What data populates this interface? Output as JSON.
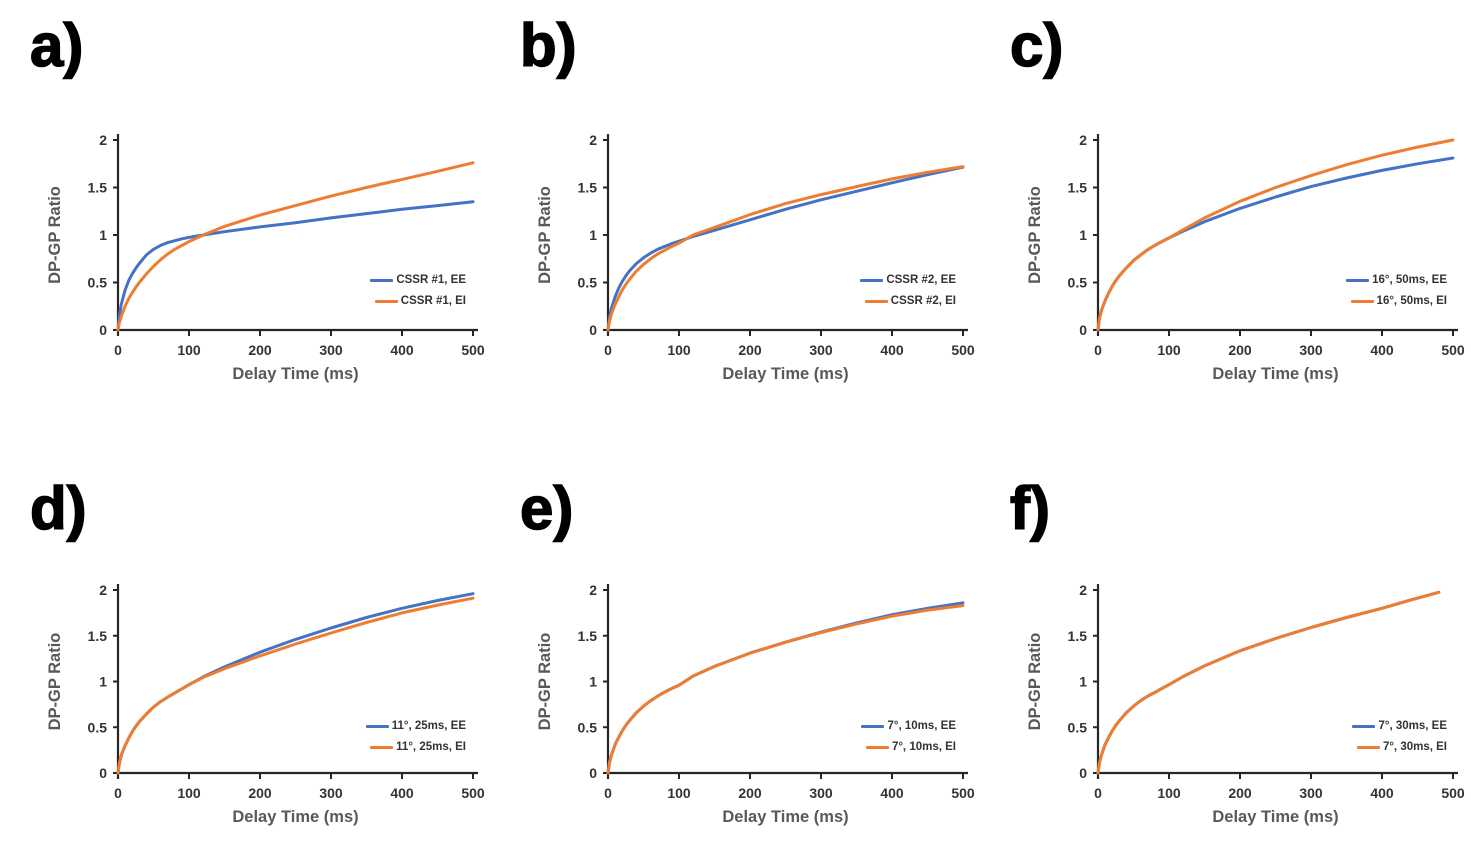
{
  "figure": {
    "background": "#ffffff",
    "x_axis_title": "Delay Time (ms)",
    "y_axis_title": "DP-GP Ratio",
    "x_ticks": [
      0,
      100,
      200,
      300,
      400,
      500
    ],
    "y_ticks": [
      0,
      0.5,
      1,
      1.5,
      2
    ],
    "x_range": [
      0,
      500
    ],
    "y_range": [
      0,
      2
    ],
    "colors": {
      "ee_line": "#4472C4",
      "ei_line": "#ED7D31",
      "axis": "#262626",
      "tick_label": "#333333",
      "axis_title": "#595959",
      "panel_letter": "#000000"
    }
  },
  "chart_data": [
    {
      "panel": "a)",
      "type": "line",
      "xlabel": "Delay Time (ms)",
      "ylabel": "DP-GP Ratio",
      "xlim": [
        0,
        500
      ],
      "ylim": [
        0,
        2
      ],
      "legend_position": "lower right",
      "grid": false,
      "series": [
        {
          "name": "CSSR #1, EE",
          "color": "#4472C4",
          "x": [
            0,
            2,
            5,
            10,
            15,
            20,
            25,
            30,
            40,
            50,
            60,
            70,
            80,
            90,
            100,
            120,
            150,
            200,
            250,
            300,
            350,
            400,
            450,
            500
          ],
          "y": [
            0,
            0.16,
            0.28,
            0.42,
            0.52,
            0.59,
            0.65,
            0.7,
            0.79,
            0.85,
            0.89,
            0.92,
            0.94,
            0.96,
            0.975,
            1.0,
            1.035,
            1.085,
            1.13,
            1.18,
            1.225,
            1.27,
            1.31,
            1.35
          ]
        },
        {
          "name": "CSSR #1, EI",
          "color": "#ED7D31",
          "x": [
            0,
            2,
            5,
            10,
            15,
            20,
            25,
            30,
            40,
            50,
            60,
            70,
            80,
            90,
            100,
            120,
            150,
            200,
            250,
            300,
            350,
            400,
            450,
            500
          ],
          "y": [
            0,
            0.08,
            0.15,
            0.25,
            0.33,
            0.39,
            0.45,
            0.5,
            0.59,
            0.67,
            0.74,
            0.8,
            0.85,
            0.89,
            0.93,
            1.0,
            1.09,
            1.21,
            1.31,
            1.41,
            1.5,
            1.585,
            1.67,
            1.76
          ]
        }
      ]
    },
    {
      "panel": "b)",
      "type": "line",
      "xlabel": "Delay Time (ms)",
      "ylabel": "DP-GP Ratio",
      "xlim": [
        0,
        500
      ],
      "ylim": [
        0,
        2
      ],
      "legend_position": "lower right",
      "grid": false,
      "series": [
        {
          "name": "CSSR #2, EE",
          "color": "#4472C4",
          "x": [
            0,
            2,
            5,
            10,
            15,
            20,
            25,
            30,
            40,
            50,
            60,
            70,
            80,
            90,
            100,
            120,
            150,
            200,
            250,
            300,
            350,
            400,
            450,
            500
          ],
          "y": [
            0,
            0.13,
            0.23,
            0.35,
            0.44,
            0.51,
            0.57,
            0.62,
            0.7,
            0.76,
            0.81,
            0.85,
            0.88,
            0.91,
            0.935,
            0.985,
            1.05,
            1.16,
            1.27,
            1.37,
            1.46,
            1.55,
            1.635,
            1.715
          ]
        },
        {
          "name": "CSSR #2, EI",
          "color": "#ED7D31",
          "x": [
            0,
            2,
            5,
            10,
            15,
            20,
            25,
            30,
            40,
            50,
            60,
            70,
            80,
            90,
            100,
            120,
            150,
            200,
            250,
            300,
            350,
            400,
            450,
            500
          ],
          "y": [
            0,
            0.09,
            0.17,
            0.27,
            0.35,
            0.42,
            0.48,
            0.53,
            0.62,
            0.69,
            0.75,
            0.8,
            0.84,
            0.88,
            0.915,
            1.0,
            1.08,
            1.215,
            1.33,
            1.425,
            1.51,
            1.59,
            1.66,
            1.72
          ]
        }
      ]
    },
    {
      "panel": "c)",
      "type": "line",
      "xlabel": "Delay Time (ms)",
      "ylabel": "DP-GP Ratio",
      "xlim": [
        0,
        500
      ],
      "ylim": [
        0,
        2
      ],
      "legend_position": "lower right",
      "grid": false,
      "series": [
        {
          "name": "16°, 50ms, EE",
          "color": "#4472C4",
          "x": [
            0,
            2,
            5,
            10,
            15,
            20,
            25,
            30,
            40,
            50,
            60,
            70,
            80,
            90,
            100,
            120,
            150,
            200,
            250,
            300,
            350,
            400,
            450,
            500
          ],
          "y": [
            0,
            0.12,
            0.21,
            0.31,
            0.39,
            0.46,
            0.52,
            0.57,
            0.655,
            0.73,
            0.79,
            0.845,
            0.89,
            0.93,
            0.97,
            1.04,
            1.14,
            1.28,
            1.4,
            1.51,
            1.6,
            1.68,
            1.75,
            1.81
          ]
        },
        {
          "name": "16°, 50ms, EI",
          "color": "#ED7D31",
          "x": [
            0,
            2,
            5,
            10,
            15,
            20,
            25,
            30,
            40,
            50,
            60,
            70,
            80,
            90,
            100,
            120,
            150,
            200,
            250,
            300,
            350,
            400,
            450,
            500
          ],
          "y": [
            0,
            0.12,
            0.21,
            0.31,
            0.39,
            0.46,
            0.52,
            0.57,
            0.655,
            0.73,
            0.79,
            0.845,
            0.89,
            0.93,
            0.97,
            1.055,
            1.18,
            1.355,
            1.5,
            1.625,
            1.74,
            1.84,
            1.925,
            2.0
          ]
        }
      ]
    },
    {
      "panel": "d)",
      "type": "line",
      "xlabel": "Delay Time (ms)",
      "ylabel": "DP-GP Ratio",
      "xlim": [
        0,
        500
      ],
      "ylim": [
        0,
        2
      ],
      "legend_position": "lower right",
      "grid": false,
      "series": [
        {
          "name": "11°, 25ms, EE",
          "color": "#4472C4",
          "x": [
            0,
            2,
            5,
            10,
            15,
            20,
            25,
            30,
            40,
            50,
            60,
            70,
            80,
            90,
            100,
            120,
            150,
            200,
            250,
            300,
            350,
            400,
            450,
            500
          ],
          "y": [
            0,
            0.11,
            0.2,
            0.3,
            0.38,
            0.45,
            0.51,
            0.56,
            0.645,
            0.72,
            0.78,
            0.83,
            0.875,
            0.92,
            0.965,
            1.05,
            1.16,
            1.32,
            1.46,
            1.585,
            1.7,
            1.8,
            1.885,
            1.96
          ]
        },
        {
          "name": "11°, 25ms, EI",
          "color": "#ED7D31",
          "x": [
            0,
            2,
            5,
            10,
            15,
            20,
            25,
            30,
            40,
            50,
            60,
            70,
            80,
            90,
            100,
            120,
            150,
            200,
            250,
            300,
            350,
            400,
            450,
            500
          ],
          "y": [
            0,
            0.11,
            0.2,
            0.3,
            0.38,
            0.45,
            0.51,
            0.56,
            0.645,
            0.72,
            0.78,
            0.83,
            0.875,
            0.92,
            0.965,
            1.045,
            1.14,
            1.28,
            1.41,
            1.53,
            1.645,
            1.75,
            1.835,
            1.91
          ]
        }
      ]
    },
    {
      "panel": "e)",
      "type": "line",
      "xlabel": "Delay Time (ms)",
      "ylabel": "DP-GP Ratio",
      "xlim": [
        0,
        500
      ],
      "ylim": [
        0,
        2
      ],
      "legend_position": "lower right",
      "grid": false,
      "series": [
        {
          "name": "7°, 10ms, EE",
          "color": "#4472C4",
          "x": [
            0,
            2,
            5,
            10,
            15,
            20,
            25,
            30,
            40,
            50,
            60,
            70,
            80,
            90,
            100,
            120,
            150,
            200,
            250,
            300,
            350,
            400,
            450,
            500
          ],
          "y": [
            0,
            0.11,
            0.2,
            0.31,
            0.39,
            0.46,
            0.52,
            0.57,
            0.66,
            0.73,
            0.79,
            0.84,
            0.885,
            0.925,
            0.96,
            1.06,
            1.165,
            1.31,
            1.43,
            1.54,
            1.64,
            1.73,
            1.8,
            1.86
          ]
        },
        {
          "name": "7°, 10ms, EI",
          "color": "#ED7D31",
          "x": [
            0,
            2,
            5,
            10,
            15,
            20,
            25,
            30,
            40,
            50,
            60,
            70,
            80,
            90,
            100,
            120,
            150,
            200,
            250,
            300,
            350,
            400,
            450,
            500
          ],
          "y": [
            0,
            0.11,
            0.2,
            0.31,
            0.39,
            0.46,
            0.52,
            0.57,
            0.66,
            0.73,
            0.79,
            0.84,
            0.885,
            0.925,
            0.96,
            1.06,
            1.165,
            1.31,
            1.43,
            1.535,
            1.63,
            1.715,
            1.78,
            1.83
          ]
        }
      ]
    },
    {
      "panel": "f)",
      "type": "line",
      "xlabel": "Delay Time (ms)",
      "ylabel": "DP-GP Ratio",
      "xlim": [
        0,
        500
      ],
      "ylim": [
        0,
        2
      ],
      "legend_position": "lower right",
      "grid": false,
      "series": [
        {
          "name": "7°, 30ms, EE",
          "color": "#4472C4",
          "x": [
            0,
            2,
            5,
            10,
            15,
            20,
            25,
            30,
            40,
            50,
            60,
            70,
            80,
            90,
            100,
            120,
            150,
            200,
            250,
            300,
            350,
            400,
            440,
            480
          ],
          "y": [
            0,
            0.11,
            0.2,
            0.31,
            0.39,
            0.46,
            0.52,
            0.57,
            0.66,
            0.73,
            0.79,
            0.84,
            0.88,
            0.925,
            0.965,
            1.055,
            1.17,
            1.335,
            1.47,
            1.59,
            1.7,
            1.8,
            1.89,
            1.975
          ]
        },
        {
          "name": "7°, 30ms, EI",
          "color": "#ED7D31",
          "x": [
            0,
            2,
            5,
            10,
            15,
            20,
            25,
            30,
            40,
            50,
            60,
            70,
            80,
            90,
            100,
            120,
            150,
            200,
            250,
            300,
            350,
            400,
            440,
            480
          ],
          "y": [
            0,
            0.11,
            0.2,
            0.31,
            0.39,
            0.46,
            0.52,
            0.57,
            0.66,
            0.73,
            0.79,
            0.84,
            0.88,
            0.925,
            0.965,
            1.055,
            1.17,
            1.335,
            1.47,
            1.59,
            1.7,
            1.8,
            1.89,
            1.975
          ]
        }
      ]
    }
  ]
}
